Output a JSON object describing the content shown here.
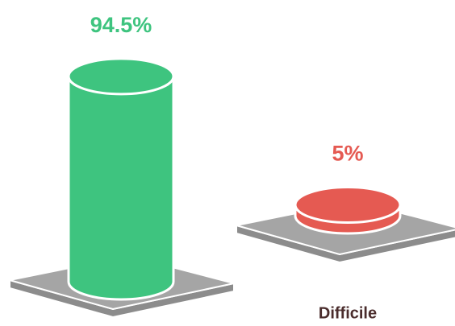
{
  "chart_data": {
    "type": "cylinder",
    "categories": [
      null,
      "Difficile"
    ],
    "values": [
      94.5,
      5
    ],
    "value_labels": [
      "94.5%",
      "5%"
    ],
    "colors": [
      "#3ec47f",
      "#e55a52"
    ]
  }
}
